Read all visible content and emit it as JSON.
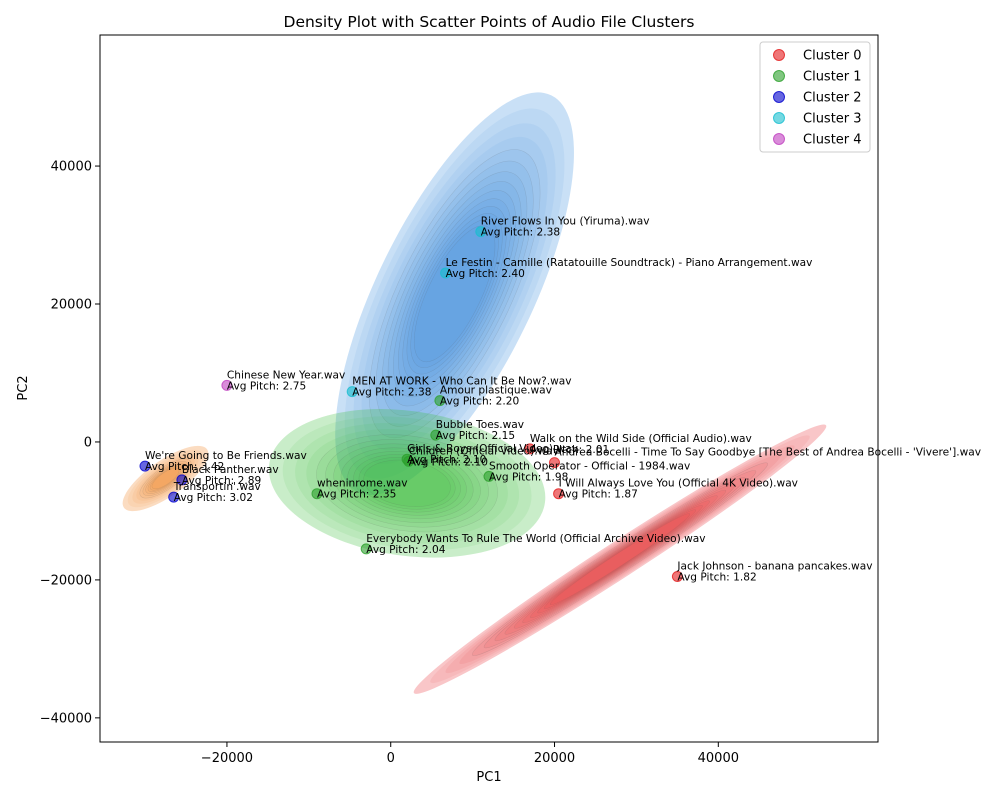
{
  "chart_data": {
    "type": "scatter",
    "title": "Density Plot with Scatter Points of Audio File Clusters",
    "xlabel": "PC1",
    "ylabel": "PC2",
    "xlim": [
      -35500,
      59500
    ],
    "ylim": [
      -43500,
      59000
    ],
    "xticks": [
      -20000,
      0,
      20000,
      40000
    ],
    "xtick_labels": [
      "−20000",
      "0",
      "20000",
      "40000"
    ],
    "yticks": [
      -40000,
      -20000,
      0,
      20000,
      40000
    ],
    "ytick_labels": [
      "−40000",
      "−20000",
      "0",
      "20000",
      "40000"
    ],
    "grid": false,
    "legend_position": "top-right",
    "series": [
      {
        "name": "Cluster 0",
        "color": "#e41a1c",
        "density_color": "#e8333a",
        "points": [
          {
            "x": 17000,
            "y": -1000,
            "label": "Walk on the Wild Side (Official Audio).wav",
            "pitch": "Avg Pitch: 2.01"
          },
          {
            "x": 20000,
            "y": -3000,
            "label": "Andrea Bocelli - Time To Say Goodbye [The Best of Andrea Bocelli - 'Vivere'].wav",
            "pitch": ""
          },
          {
            "x": 20500,
            "y": -7500,
            "label": "I Will Always Love You (Official 4K Video).wav",
            "pitch": "Avg Pitch: 1.87"
          },
          {
            "x": 35000,
            "y": -19500,
            "label": "Jack Johnson - banana pancakes.wav",
            "pitch": "Avg Pitch: 1.82"
          }
        ]
      },
      {
        "name": "Cluster 1",
        "color": "#2ca02c",
        "density_color": "#3cbf3c",
        "points": [
          {
            "x": 5500,
            "y": 1000,
            "label": "Bubble Toes.wav",
            "pitch": "Avg Pitch: 2.15"
          },
          {
            "x": 2000,
            "y": -2500,
            "label": "Girls & Boys (Official Video).wav",
            "pitch": "Avg Pitch: 2.10"
          },
          {
            "x": 2200,
            "y": -2800,
            "label": "Children (Official Video).wav",
            "pitch": "Avg Pitch: 2.10"
          },
          {
            "x": 12000,
            "y": -5000,
            "label": "Smooth Operator - Official - 1984.wav",
            "pitch": "Avg Pitch: 1.98"
          },
          {
            "x": -9000,
            "y": -7500,
            "label": "wheninrome.wav",
            "pitch": "Avg Pitch: 2.35"
          },
          {
            "x": -3000,
            "y": -15500,
            "label": "Everybody Wants To Rule The World (Official Archive Video).wav",
            "pitch": "Avg Pitch: 2.04"
          },
          {
            "x": 6000,
            "y": 6000,
            "label": "Amour plastique.wav",
            "pitch": "Avg Pitch: 2.20"
          }
        ]
      },
      {
        "name": "Cluster 2",
        "color": "#0000cd",
        "density_color": "#f08020",
        "points": [
          {
            "x": -30000,
            "y": -3500,
            "label": "We're Going to Be Friends.wav",
            "pitch": "Avg Pitch: 3.42"
          },
          {
            "x": -25500,
            "y": -5500,
            "label": "Black Panther.wav",
            "pitch": "Avg Pitch: 2.89"
          },
          {
            "x": -26500,
            "y": -8000,
            "label": "Transportin'.wav",
            "pitch": "Avg Pitch: 3.02"
          }
        ]
      },
      {
        "name": "Cluster 3",
        "color": "#17becf",
        "density_color": "#3d8fe0",
        "points": [
          {
            "x": 11000,
            "y": 30500,
            "label": "River Flows In You (Yiruma).wav",
            "pitch": "Avg Pitch: 2.38"
          },
          {
            "x": 6700,
            "y": 24500,
            "label": "Le Festin - Camille (Ratatouille Soundtrack) - Piano Arrangement.wav",
            "pitch": "Avg Pitch: 2.40"
          },
          {
            "x": -4700,
            "y": 7300,
            "label": "MEN AT WORK - Who Can It Be Now?.wav",
            "pitch": "Avg Pitch: 2.38"
          }
        ]
      },
      {
        "name": "Cluster 4",
        "color": "#bf3fbf",
        "density_color": "",
        "points": [
          {
            "x": -20000,
            "y": 8200,
            "label": "Chinese New Year.wav",
            "pitch": "Avg Pitch: 2.75"
          }
        ]
      }
    ]
  }
}
